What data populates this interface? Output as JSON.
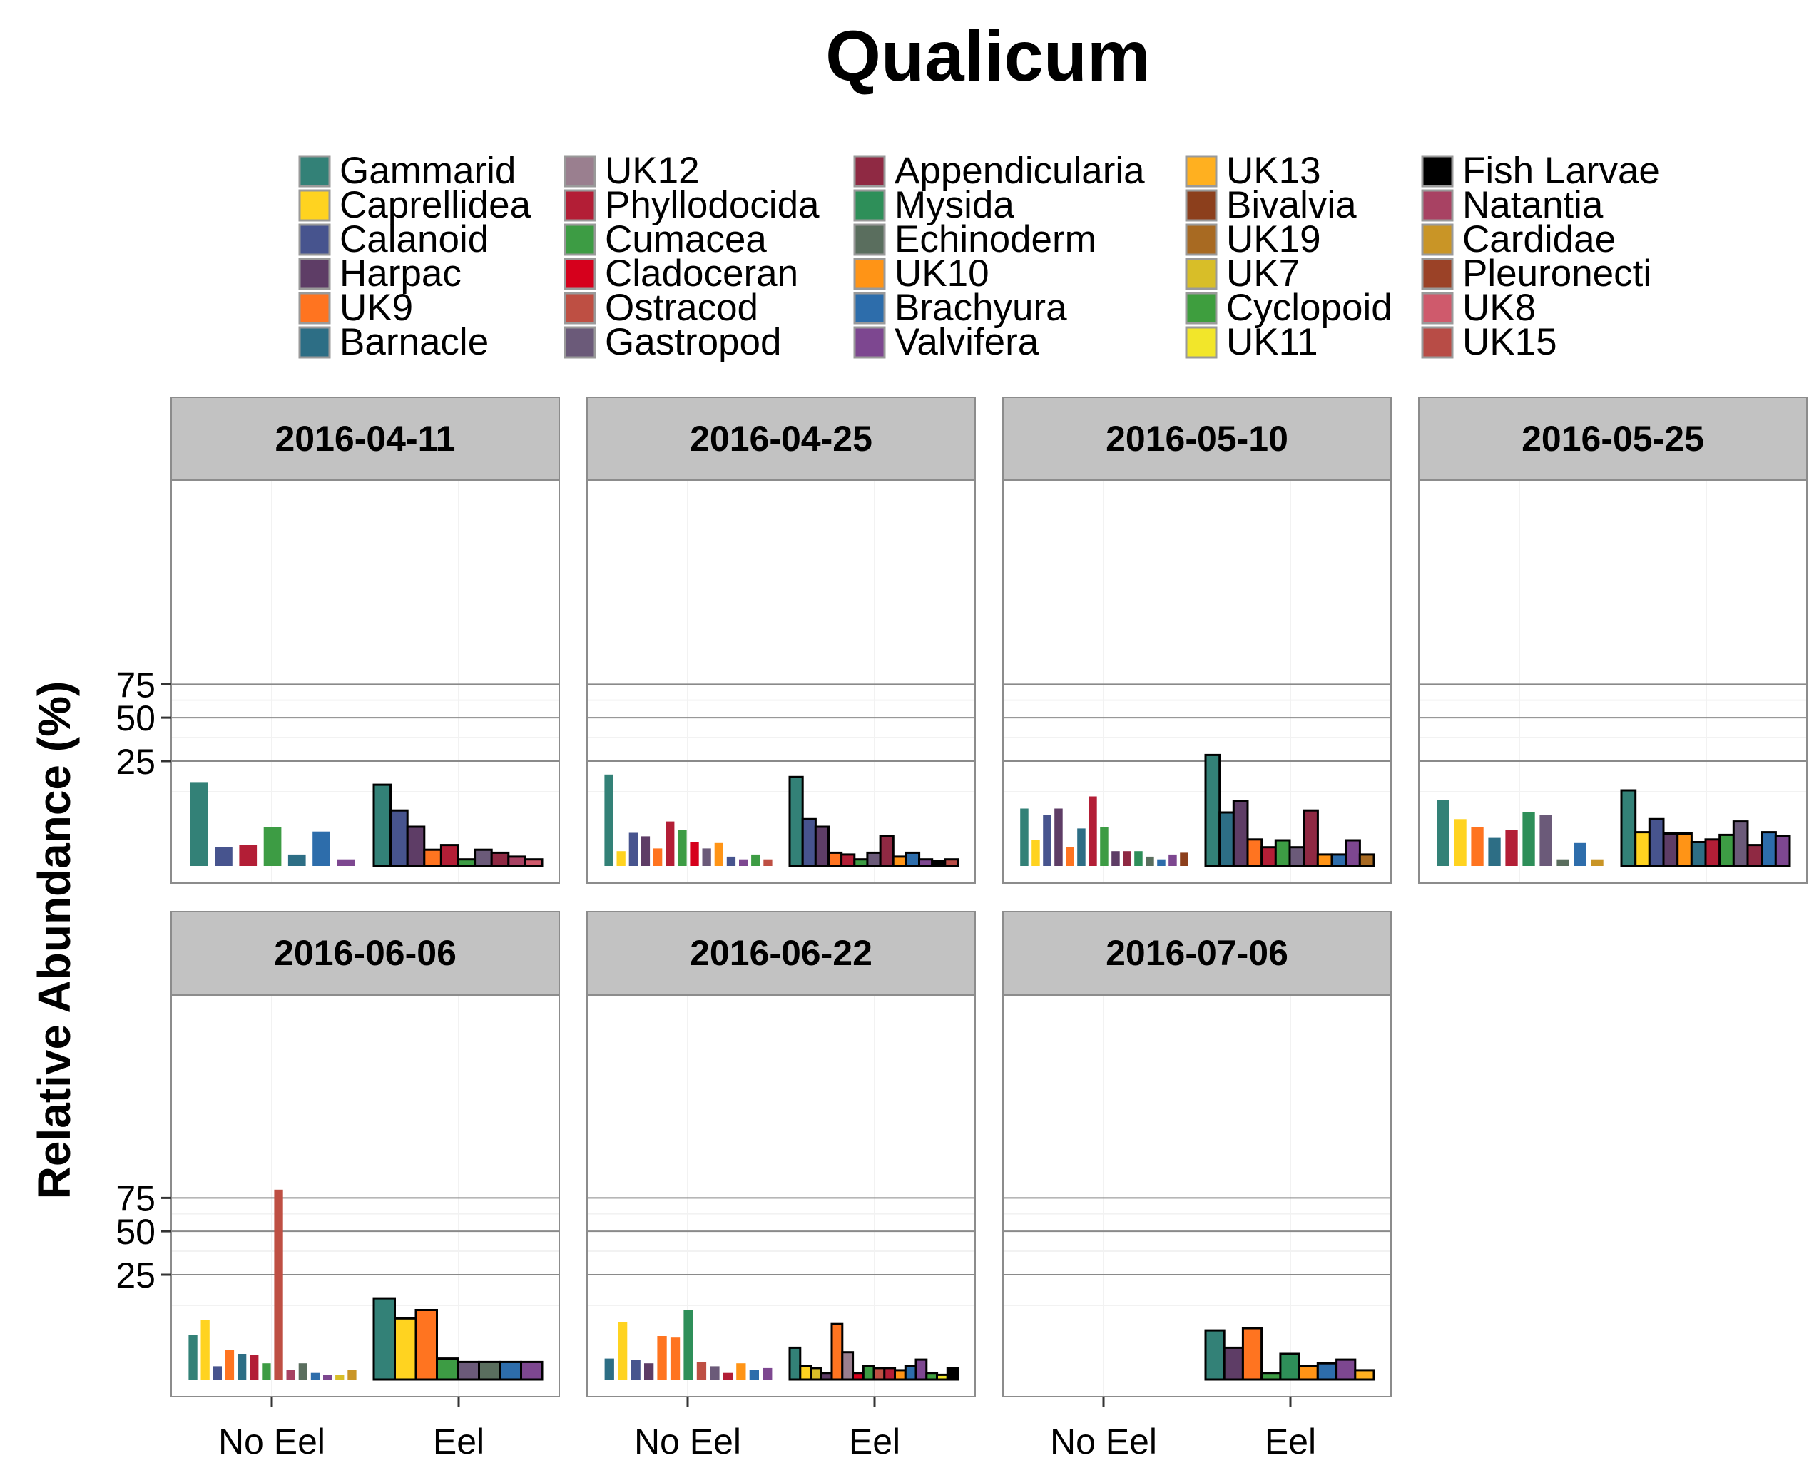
{
  "chart_data": {
    "type": "bar",
    "title": "Qualicum",
    "xlabel": "",
    "ylabel": "Relative Abundance (%)",
    "y_scale": "sqrt",
    "y_ticks": [
      25,
      50,
      75
    ],
    "x_categories": [
      "No Eel",
      "Eel"
    ],
    "grid": true,
    "legend_position": "top",
    "legend": [
      {
        "name": "Gammarid",
        "color": "#338177"
      },
      {
        "name": "Caprellidea",
        "color": "#FFD320"
      },
      {
        "name": "Calanoid",
        "color": "#47548E"
      },
      {
        "name": "Harpac",
        "color": "#5E3D66"
      },
      {
        "name": "UK9",
        "color": "#FF7420"
      },
      {
        "name": "Barnacle",
        "color": "#2D6E85"
      },
      {
        "name": "UK12",
        "color": "#9A7F8F"
      },
      {
        "name": "Phyllodocida",
        "color": "#B31E36"
      },
      {
        "name": "Cumacea",
        "color": "#3D9C44"
      },
      {
        "name": "Cladoceran",
        "color": "#D6001C"
      },
      {
        "name": "Ostracod",
        "color": "#BE4F43"
      },
      {
        "name": "Gastropod",
        "color": "#6B5A79"
      },
      {
        "name": "Appendicularia",
        "color": "#8F2943"
      },
      {
        "name": "Mysida",
        "color": "#2E8F59"
      },
      {
        "name": "Echinoderm",
        "color": "#5A6E5E"
      },
      {
        "name": "UK10",
        "color": "#FF9416"
      },
      {
        "name": "Brachyura",
        "color": "#2D6DAB"
      },
      {
        "name": "Valvifera",
        "color": "#7D4790"
      },
      {
        "name": "UK13",
        "color": "#FFB020"
      },
      {
        "name": "Bivalvia",
        "color": "#8C3F1C"
      },
      {
        "name": "UK19",
        "color": "#A86A22"
      },
      {
        "name": "UK7",
        "color": "#D8BE28"
      },
      {
        "name": "Cyclopoid",
        "color": "#3E9E3E"
      },
      {
        "name": "UK11",
        "color": "#F2E62A"
      },
      {
        "name": "Fish Larvae",
        "color": "#000000"
      },
      {
        "name": "Natantia",
        "color": "#A84263"
      },
      {
        "name": "Cardidae",
        "color": "#C99526"
      },
      {
        "name": "Pleuronecti",
        "color": "#9B4227"
      },
      {
        "name": "UK8",
        "color": "#CF5A6C"
      },
      {
        "name": "UK15",
        "color": "#B84C46"
      }
    ],
    "panels": [
      {
        "date": "2016-04-11",
        "no_eel": [
          {
            "taxon": "Gammarid",
            "value": 16
          },
          {
            "taxon": "Calanoid",
            "value": 0.8
          },
          {
            "taxon": "Phyllodocida",
            "value": 1
          },
          {
            "taxon": "Cumacea",
            "value": 3.5
          },
          {
            "taxon": "Barnacle",
            "value": 0.3
          },
          {
            "taxon": "Brachyura",
            "value": 2.7
          },
          {
            "taxon": "Valvifera",
            "value": 0.1
          }
        ],
        "eel": [
          {
            "taxon": "Gammarid",
            "value": 15
          },
          {
            "taxon": "Calanoid",
            "value": 7
          },
          {
            "taxon": "Harpac",
            "value": 3.5
          },
          {
            "taxon": "UK9",
            "value": 0.6
          },
          {
            "taxon": "Phyllodocida",
            "value": 1
          },
          {
            "taxon": "Cumacea",
            "value": 0.1
          },
          {
            "taxon": "Gastropod",
            "value": 0.6
          },
          {
            "taxon": "Appendicularia",
            "value": 0.4
          },
          {
            "taxon": "Natantia",
            "value": 0.2
          },
          {
            "taxon": "UK8",
            "value": 0.1
          }
        ]
      },
      {
        "date": "2016-04-25",
        "no_eel": [
          {
            "taxon": "Gammarid",
            "value": 19
          },
          {
            "taxon": "Caprellidea",
            "value": 0.5
          },
          {
            "taxon": "Calanoid",
            "value": 2.5
          },
          {
            "taxon": "Harpac",
            "value": 2
          },
          {
            "taxon": "UK9",
            "value": 0.7
          },
          {
            "taxon": "Phyllodocida",
            "value": 4.5
          },
          {
            "taxon": "Cumacea",
            "value": 3
          },
          {
            "taxon": "Cladoceran",
            "value": 1.3
          },
          {
            "taxon": "Gastropod",
            "value": 0.7
          },
          {
            "taxon": "UK10",
            "value": 1.2
          },
          {
            "taxon": "Calanoid",
            "value": 0.2
          },
          {
            "taxon": "Valvifera",
            "value": 0.1
          },
          {
            "taxon": "Cumacea",
            "value": 0.3
          },
          {
            "taxon": "Ostracod",
            "value": 0.1
          }
        ],
        "eel": [
          {
            "taxon": "Gammarid",
            "value": 18
          },
          {
            "taxon": "Calanoid",
            "value": 5
          },
          {
            "taxon": "Harpac",
            "value": 3.5
          },
          {
            "taxon": "UK9",
            "value": 0.4
          },
          {
            "taxon": "Phyllodocida",
            "value": 0.3
          },
          {
            "taxon": "Cumacea",
            "value": 0.1
          },
          {
            "taxon": "Gastropod",
            "value": 0.4
          },
          {
            "taxon": "Appendicularia",
            "value": 2
          },
          {
            "taxon": "UK10",
            "value": 0.2
          },
          {
            "taxon": "Brachyura",
            "value": 0.4
          },
          {
            "taxon": "Valvifera",
            "value": 0.1
          },
          {
            "taxon": "Fish Larvae",
            "value": 0.05
          },
          {
            "taxon": "UK15",
            "value": 0.1
          }
        ]
      },
      {
        "date": "2016-05-10",
        "no_eel": [
          {
            "taxon": "Gammarid",
            "value": 7.5
          },
          {
            "taxon": "Caprellidea",
            "value": 1.5
          },
          {
            "taxon": "Calanoid",
            "value": 6
          },
          {
            "taxon": "Harpac",
            "value": 7.5
          },
          {
            "taxon": "UK9",
            "value": 0.8
          },
          {
            "taxon": "Barnacle",
            "value": 3.2
          },
          {
            "taxon": "Phyllodocida",
            "value": 11
          },
          {
            "taxon": "Cumacea",
            "value": 3.5
          },
          {
            "taxon": "Harpac",
            "value": 0.5
          },
          {
            "taxon": "Appendicularia",
            "value": 0.5
          },
          {
            "taxon": "Mysida",
            "value": 0.5
          },
          {
            "taxon": "Echinoderm",
            "value": 0.2
          },
          {
            "taxon": "Brachyura",
            "value": 0.1
          },
          {
            "taxon": "Valvifera",
            "value": 0.3
          },
          {
            "taxon": "Bivalvia",
            "value": 0.4
          }
        ],
        "eel": [
          {
            "taxon": "Gammarid",
            "value": 28
          },
          {
            "taxon": "Barnacle",
            "value": 6.5
          },
          {
            "taxon": "Harpac",
            "value": 9.5
          },
          {
            "taxon": "UK9",
            "value": 1.6
          },
          {
            "taxon": "Phyllodocida",
            "value": 0.8
          },
          {
            "taxon": "Cumacea",
            "value": 1.5
          },
          {
            "taxon": "Gastropod",
            "value": 0.8
          },
          {
            "taxon": "Appendicularia",
            "value": 7
          },
          {
            "taxon": "UK10",
            "value": 0.3
          },
          {
            "taxon": "Brachyura",
            "value": 0.3
          },
          {
            "taxon": "Valvifera",
            "value": 1.5
          },
          {
            "taxon": "UK19",
            "value": 0.3
          }
        ]
      },
      {
        "date": "2016-05-25",
        "no_eel": [
          {
            "taxon": "Gammarid",
            "value": 10
          },
          {
            "taxon": "Caprellidea",
            "value": 5
          },
          {
            "taxon": "UK9",
            "value": 3.5
          },
          {
            "taxon": "Barnacle",
            "value": 1.8
          },
          {
            "taxon": "Phyllodocida",
            "value": 3
          },
          {
            "taxon": "Mysida",
            "value": 6.5
          },
          {
            "taxon": "Gastropod",
            "value": 6
          },
          {
            "taxon": "Echinoderm",
            "value": 0.1
          },
          {
            "taxon": "Brachyura",
            "value": 1.2
          },
          {
            "taxon": "Cardidae",
            "value": 0.1
          }
        ],
        "eel": [
          {
            "taxon": "Gammarid",
            "value": 13
          },
          {
            "taxon": "Caprellidea",
            "value": 2.6
          },
          {
            "taxon": "Calanoid",
            "value": 5
          },
          {
            "taxon": "Harpac",
            "value": 2.4
          },
          {
            "taxon": "UK10",
            "value": 2.4
          },
          {
            "taxon": "Barnacle",
            "value": 1.3
          },
          {
            "taxon": "Phyllodocida",
            "value": 1.6
          },
          {
            "taxon": "Cumacea",
            "value": 2.2
          },
          {
            "taxon": "Gastropod",
            "value": 4.5
          },
          {
            "taxon": "Appendicularia",
            "value": 1
          },
          {
            "taxon": "Brachyura",
            "value": 2.6
          },
          {
            "taxon": "Valvifera",
            "value": 2
          }
        ]
      },
      {
        "date": "2016-06-06",
        "no_eel": [
          {
            "taxon": "Gammarid",
            "value": 4.5
          },
          {
            "taxon": "Caprellidea",
            "value": 8
          },
          {
            "taxon": "Calanoid",
            "value": 0.4
          },
          {
            "taxon": "UK9",
            "value": 2
          },
          {
            "taxon": "Barnacle",
            "value": 1.5
          },
          {
            "taxon": "Phyllodocida",
            "value": 1.4
          },
          {
            "taxon": "Cumacea",
            "value": 0.6
          },
          {
            "taxon": "Ostracod",
            "value": 82
          },
          {
            "taxon": "Natantia",
            "value": 0.2
          },
          {
            "taxon": "Echinoderm",
            "value": 0.6
          },
          {
            "taxon": "Brachyura",
            "value": 0.1
          },
          {
            "taxon": "Valvifera",
            "value": 0.05
          },
          {
            "taxon": "UK7",
            "value": 0.05
          },
          {
            "taxon": "Cardidae",
            "value": 0.2
          }
        ],
        "eel": [
          {
            "taxon": "Gammarid",
            "value": 15
          },
          {
            "taxon": "Caprellidea",
            "value": 8.5
          },
          {
            "taxon": "UK9",
            "value": 11
          },
          {
            "taxon": "Cumacea",
            "value": 1
          },
          {
            "taxon": "Gastropod",
            "value": 0.7
          },
          {
            "taxon": "Echinoderm",
            "value": 0.7
          },
          {
            "taxon": "Brachyura",
            "value": 0.7
          },
          {
            "taxon": "Valvifera",
            "value": 0.7
          }
        ]
      },
      {
        "date": "2016-06-22",
        "no_eel": [
          {
            "taxon": "Barnacle",
            "value": 1
          },
          {
            "taxon": "Caprellidea",
            "value": 7.5
          },
          {
            "taxon": "Calanoid",
            "value": 0.9
          },
          {
            "taxon": "Harpac",
            "value": 0.6
          },
          {
            "taxon": "UK9",
            "value": 4.3
          },
          {
            "taxon": "UK9",
            "value": 4
          },
          {
            "taxon": "Mysida",
            "value": 11
          },
          {
            "taxon": "Ostracod",
            "value": 0.7
          },
          {
            "taxon": "Gastropod",
            "value": 0.4
          },
          {
            "taxon": "Phyllodocida",
            "value": 0.1
          },
          {
            "taxon": "UK10",
            "value": 0.6
          },
          {
            "taxon": "Brachyura",
            "value": 0.2
          },
          {
            "taxon": "Valvifera",
            "value": 0.3
          }
        ],
        "eel": [
          {
            "taxon": "Gammarid",
            "value": 2.3
          },
          {
            "taxon": "Caprellidea",
            "value": 0.4
          },
          {
            "taxon": "UK7",
            "value": 0.3
          },
          {
            "taxon": "Harpac",
            "value": 0.1
          },
          {
            "taxon": "UK9",
            "value": 7
          },
          {
            "taxon": "UK12",
            "value": 1.7
          },
          {
            "taxon": "Cladoceran",
            "value": 0.1
          },
          {
            "taxon": "Cumacea",
            "value": 0.4
          },
          {
            "taxon": "Ostracod",
            "value": 0.3
          },
          {
            "taxon": "Phyllodocida",
            "value": 0.3
          },
          {
            "taxon": "UK10",
            "value": 0.2
          },
          {
            "taxon": "Brachyura",
            "value": 0.4
          },
          {
            "taxon": "Valvifera",
            "value": 0.9
          },
          {
            "taxon": "Cyclopoid",
            "value": 0.1
          },
          {
            "taxon": "UK11",
            "value": 0.05
          },
          {
            "taxon": "Fish Larvae",
            "value": 0.3
          }
        ]
      },
      {
        "date": "2016-07-06",
        "no_eel": [],
        "eel": [
          {
            "taxon": "Gammarid",
            "value": 5.5
          },
          {
            "taxon": "Harpac",
            "value": 2.3
          },
          {
            "taxon": "UK9",
            "value": 6
          },
          {
            "taxon": "Cumacea",
            "value": 0.1
          },
          {
            "taxon": "Mysida",
            "value": 1.5
          },
          {
            "taxon": "UK10",
            "value": 0.4
          },
          {
            "taxon": "Brachyura",
            "value": 0.6
          },
          {
            "taxon": "Valvifera",
            "value": 0.9
          },
          {
            "taxon": "UK13",
            "value": 0.2
          }
        ]
      }
    ]
  }
}
